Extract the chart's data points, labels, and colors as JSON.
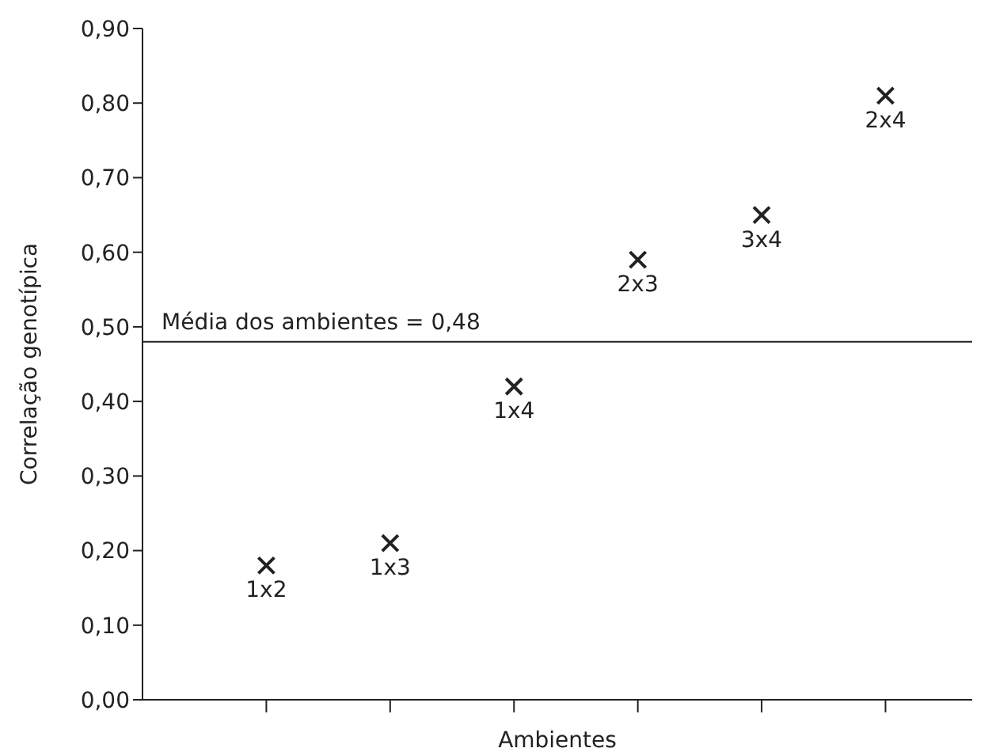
{
  "chart_data": {
    "type": "scatter",
    "xlabel": "Ambientes",
    "ylabel": "Correlação genotípica",
    "categories": [
      "1x2",
      "1x3",
      "1x4",
      "2x3",
      "3x4",
      "2x4"
    ],
    "values": [
      0.18,
      0.21,
      0.42,
      0.59,
      0.65,
      0.81
    ],
    "color": "#222222",
    "marker": "cross",
    "grid": false,
    "tick_labels": "y",
    "ylim": [
      0,
      0.9
    ],
    "yticks": [
      {
        "value": 0,
        "label": "0,00"
      },
      {
        "value": 0.1,
        "label": "0,10"
      },
      {
        "value": 0.2,
        "label": "0,20"
      },
      {
        "value": 0.3,
        "label": "0,30"
      },
      {
        "value": 0.4,
        "label": "0,40"
      },
      {
        "value": 0.5,
        "label": "0,50"
      },
      {
        "value": 0.6,
        "label": "0,60"
      },
      {
        "value": 0.7,
        "label": "0,70"
      },
      {
        "value": 0.8,
        "label": "0,80"
      },
      {
        "value": 0.9,
        "label": "0,90"
      }
    ],
    "ref_lines": [
      {
        "axis": "y",
        "value": 0.48,
        "label": "Média dos ambientes = 0,48",
        "color": "#222222"
      }
    ]
  }
}
